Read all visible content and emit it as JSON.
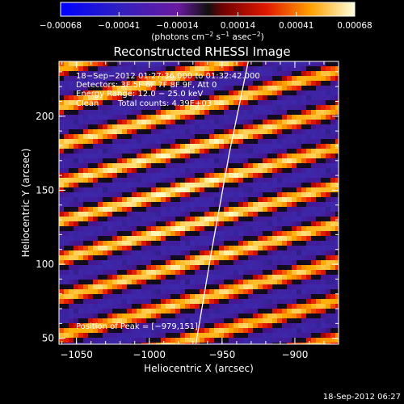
{
  "chart_data": {
    "type": "heatmap",
    "title": "Reconstructed RHESSI Image",
    "xlabel": "Heliocentric X (arcsec)",
    "ylabel": "Heliocentric Y (arcsec)",
    "xlim": [
      -1062,
      -870
    ],
    "ylim": [
      46,
      237
    ],
    "xticks": [
      -1050,
      -1000,
      -950,
      -900
    ],
    "yticks": [
      50,
      100,
      150,
      200
    ],
    "xtick_labels": [
      "−1050",
      "−1000",
      "−950",
      "−900"
    ],
    "ytick_labels": [
      "50",
      "100",
      "150",
      "200"
    ],
    "colorbar": {
      "min": -0.00068,
      "max": 0.00068,
      "tick_values": [
        -0.00068,
        -0.00041,
        -0.00014,
        0.00014,
        0.00041,
        0.00068
      ],
      "tick_labels": [
        "−0.00068",
        "−0.00041",
        "−0.00014",
        "0.00014",
        "0.00041",
        "0.00068"
      ],
      "units_prefix": "(photons cm",
      "units_exp1": "−2",
      "units_mid": " s",
      "units_exp2": "−1",
      "units_mid2": " asec",
      "units_exp3": "−2",
      "units_suffix": ")"
    },
    "annotations": {
      "time_range": "18−Sep−2012 01:27:36.000 to 01:32:42.000",
      "detectors": "Detectors: 3F 5F 6F 7F 8F 9F, Att 0",
      "energy": "Energy Range: 12.0 − 25.0 keV",
      "method": "Clean",
      "counts": "Total counts: 4.39E+03",
      "peak": "Position of Peak = [−979,151]"
    },
    "limb_line": [
      [
        -968,
        46
      ],
      [
        -957,
        110
      ],
      [
        -945,
        175
      ],
      [
        -932,
        237
      ]
    ],
    "stripe_slope": 0.26,
    "stripe_period": 25.8,
    "stripe_phase": 150.5,
    "peak": [
      -979,
      151
    ],
    "timestamp": "18-Sep-2012 06:27"
  }
}
